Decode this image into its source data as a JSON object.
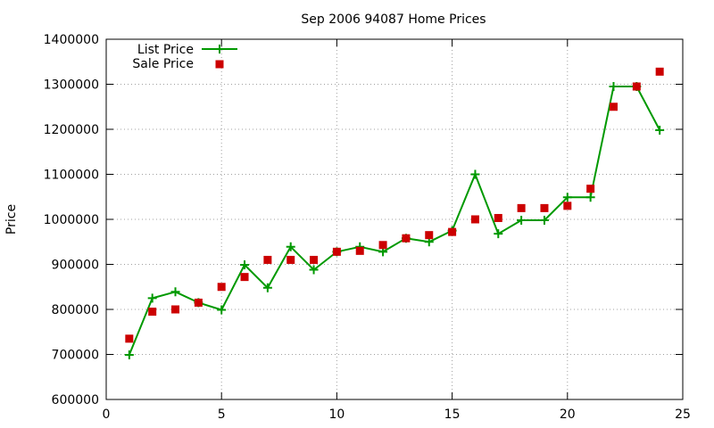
{
  "chart_data": {
    "type": "line",
    "title": "Sep 2006 94087 Home Prices",
    "xlabel": "",
    "ylabel": "Price",
    "xlim": [
      0,
      25
    ],
    "ylim": [
      600000,
      1400000
    ],
    "x_ticks": [
      0,
      5,
      10,
      15,
      20,
      25
    ],
    "y_ticks": [
      600000,
      700000,
      800000,
      900000,
      1000000,
      1100000,
      1200000,
      1300000,
      1400000
    ],
    "grid": true,
    "legend_position": "top-left",
    "series": [
      {
        "name": "List Price",
        "style": "line-with-plus-markers",
        "color": "#009900",
        "x": [
          1,
          2,
          3,
          4,
          5,
          6,
          7,
          8,
          9,
          10,
          11,
          12,
          13,
          14,
          15,
          16,
          17,
          18,
          19,
          20,
          21,
          22,
          23,
          24
        ],
        "values": [
          699000,
          825000,
          839000,
          815000,
          799000,
          899000,
          848000,
          939000,
          888000,
          928000,
          939000,
          928000,
          958000,
          950000,
          975000,
          1100000,
          968000,
          998000,
          998000,
          1049000,
          1049000,
          1295000,
          1295000,
          1198000
        ]
      },
      {
        "name": "Sale Price",
        "style": "square-markers",
        "color": "#cc0000",
        "x": [
          1,
          2,
          3,
          4,
          5,
          6,
          7,
          8,
          9,
          10,
          11,
          12,
          13,
          14,
          15,
          16,
          17,
          18,
          19,
          20,
          21,
          22,
          23,
          24
        ],
        "values": [
          735000,
          795000,
          800000,
          815000,
          850000,
          872000,
          910000,
          910000,
          910000,
          928000,
          930000,
          943000,
          958000,
          965000,
          972000,
          1000000,
          1003000,
          1025000,
          1025000,
          1030000,
          1068000,
          1250000,
          1295000,
          1328000
        ]
      }
    ]
  }
}
